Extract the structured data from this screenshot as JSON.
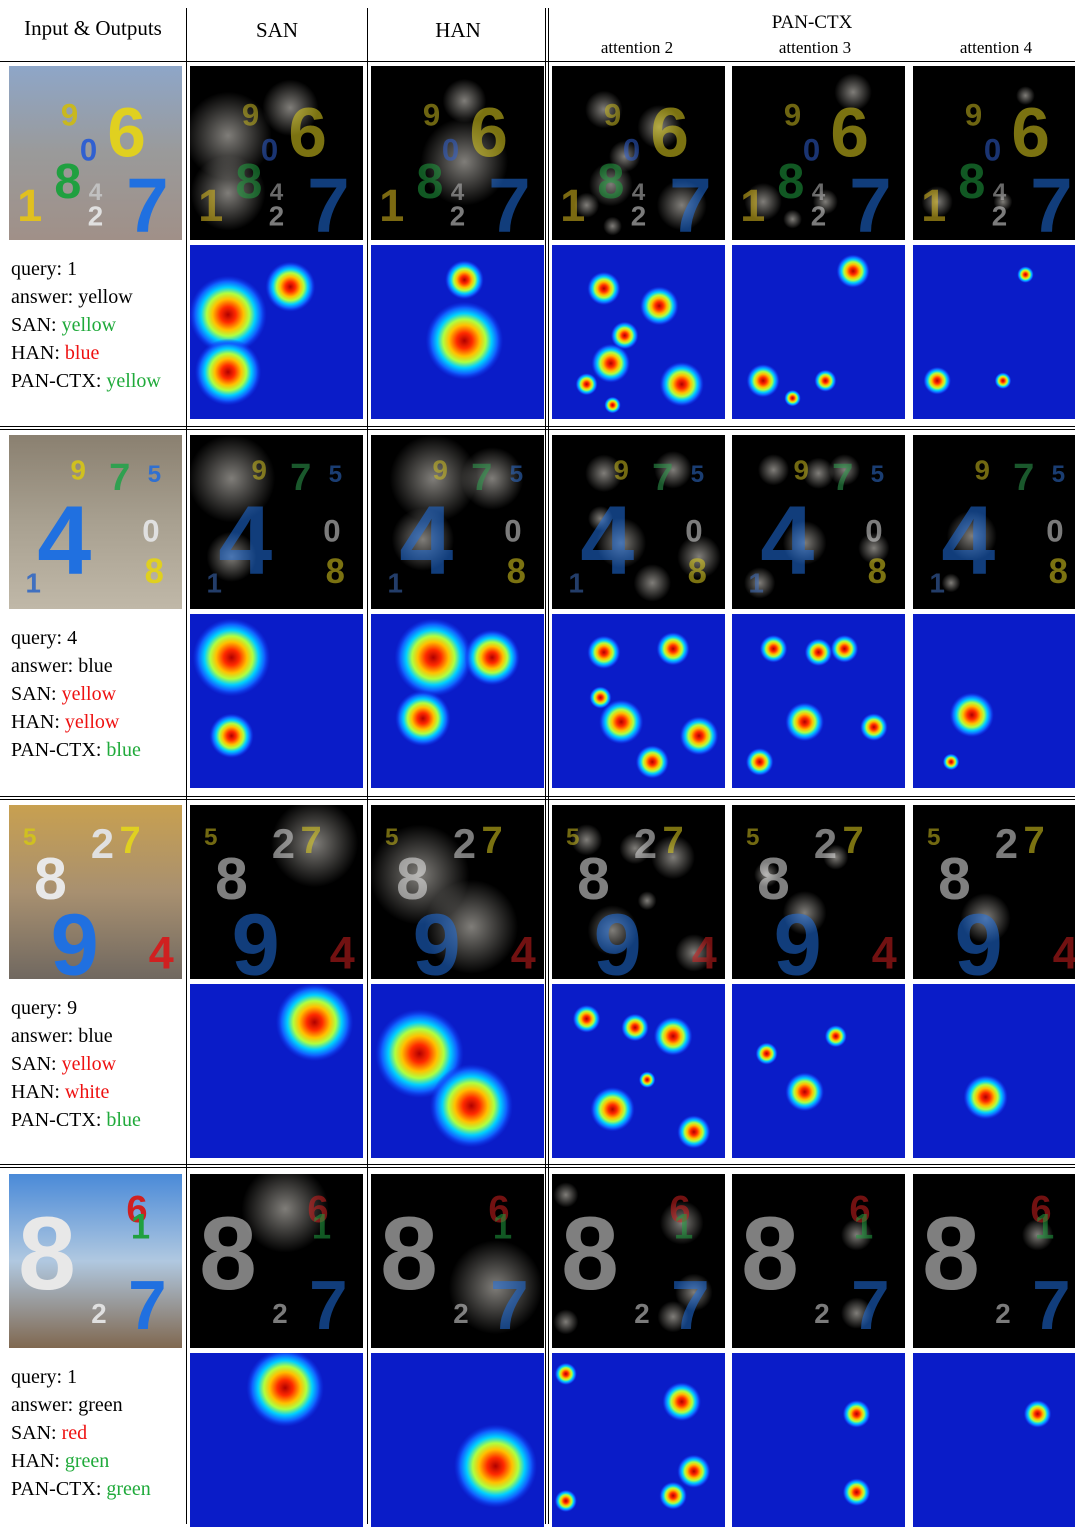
{
  "header": {
    "col1": "Input & Outputs",
    "col2": "SAN",
    "col3": "HAN",
    "col4": "PAN-CTX",
    "attn": [
      "attention 2",
      "attention 3",
      "attention 4"
    ]
  },
  "colors": {
    "correct": "#1faa3a",
    "wrong": "#ee1111",
    "heat_background": "#0a1cc8",
    "attention_background": "#000000"
  },
  "rows": [
    {
      "lines": [
        {
          "label": "query:",
          "value": "1",
          "status": "neutral"
        },
        {
          "label": "answer:",
          "value": "yellow",
          "status": "neutral"
        },
        {
          "label": "SAN:",
          "value": "yellow",
          "status": "ok"
        },
        {
          "label": "HAN:",
          "value": "blue",
          "status": "bad"
        },
        {
          "label": "PAN-CTX:",
          "value": "yellow",
          "status": "ok"
        }
      ],
      "input_digits": [
        {
          "d": "9",
          "c": "#c8b820"
        },
        {
          "d": "6",
          "c": "#e0d020"
        },
        {
          "d": "0",
          "c": "#3060d0"
        },
        {
          "d": "8",
          "c": "#20a040"
        },
        {
          "d": "4",
          "c": "#c0c0c0"
        },
        {
          "d": "1",
          "c": "#e0c020"
        },
        {
          "d": "2",
          "c": "#e0e0e0"
        },
        {
          "d": "7",
          "c": "#2070e0"
        }
      ]
    },
    {
      "lines": [
        {
          "label": "query:",
          "value": "4",
          "status": "neutral"
        },
        {
          "label": "answer:",
          "value": "blue",
          "status": "neutral"
        },
        {
          "label": "SAN:",
          "value": "yellow",
          "status": "bad"
        },
        {
          "label": "HAN:",
          "value": "yellow",
          "status": "bad"
        },
        {
          "label": "PAN-CTX:",
          "value": "blue",
          "status": "ok"
        }
      ],
      "input_digits": [
        {
          "d": "9",
          "c": "#d0c020"
        },
        {
          "d": "7",
          "c": "#30a050"
        },
        {
          "d": "5",
          "c": "#3070d0"
        },
        {
          "d": "4",
          "c": "#2070e0"
        },
        {
          "d": "0",
          "c": "#e0e0e0"
        },
        {
          "d": "8",
          "c": "#e0d020"
        },
        {
          "d": "1",
          "c": "#4070c0"
        }
      ]
    },
    {
      "lines": [
        {
          "label": "query:",
          "value": "9",
          "status": "neutral"
        },
        {
          "label": "answer:",
          "value": "blue",
          "status": "neutral"
        },
        {
          "label": "SAN:",
          "value": "yellow",
          "status": "bad"
        },
        {
          "label": "HAN:",
          "value": "white",
          "status": "bad"
        },
        {
          "label": "PAN-CTX:",
          "value": "blue",
          "status": "ok"
        }
      ],
      "input_digits": [
        {
          "d": "5",
          "c": "#d0c020"
        },
        {
          "d": "2",
          "c": "#e0e0e0"
        },
        {
          "d": "7",
          "c": "#e0d020"
        },
        {
          "d": "8",
          "c": "#e8e8e8"
        },
        {
          "d": "9",
          "c": "#2070e0"
        },
        {
          "d": "4",
          "c": "#d02020"
        }
      ]
    },
    {
      "lines": [
        {
          "label": "query:",
          "value": "1",
          "status": "neutral"
        },
        {
          "label": "answer:",
          "value": "green",
          "status": "neutral"
        },
        {
          "label": "SAN:",
          "value": "red",
          "status": "bad"
        },
        {
          "label": "HAN:",
          "value": "green",
          "status": "ok"
        },
        {
          "label": "PAN-CTX:",
          "value": "green",
          "status": "ok"
        }
      ],
      "input_digits": [
        {
          "d": "8",
          "c": "#e8e8e8"
        },
        {
          "d": "6",
          "c": "#d02020"
        },
        {
          "d": "1",
          "c": "#20a040"
        },
        {
          "d": "7",
          "c": "#2070e0"
        },
        {
          "d": "2",
          "c": "#e0e0e0"
        }
      ]
    }
  ]
}
